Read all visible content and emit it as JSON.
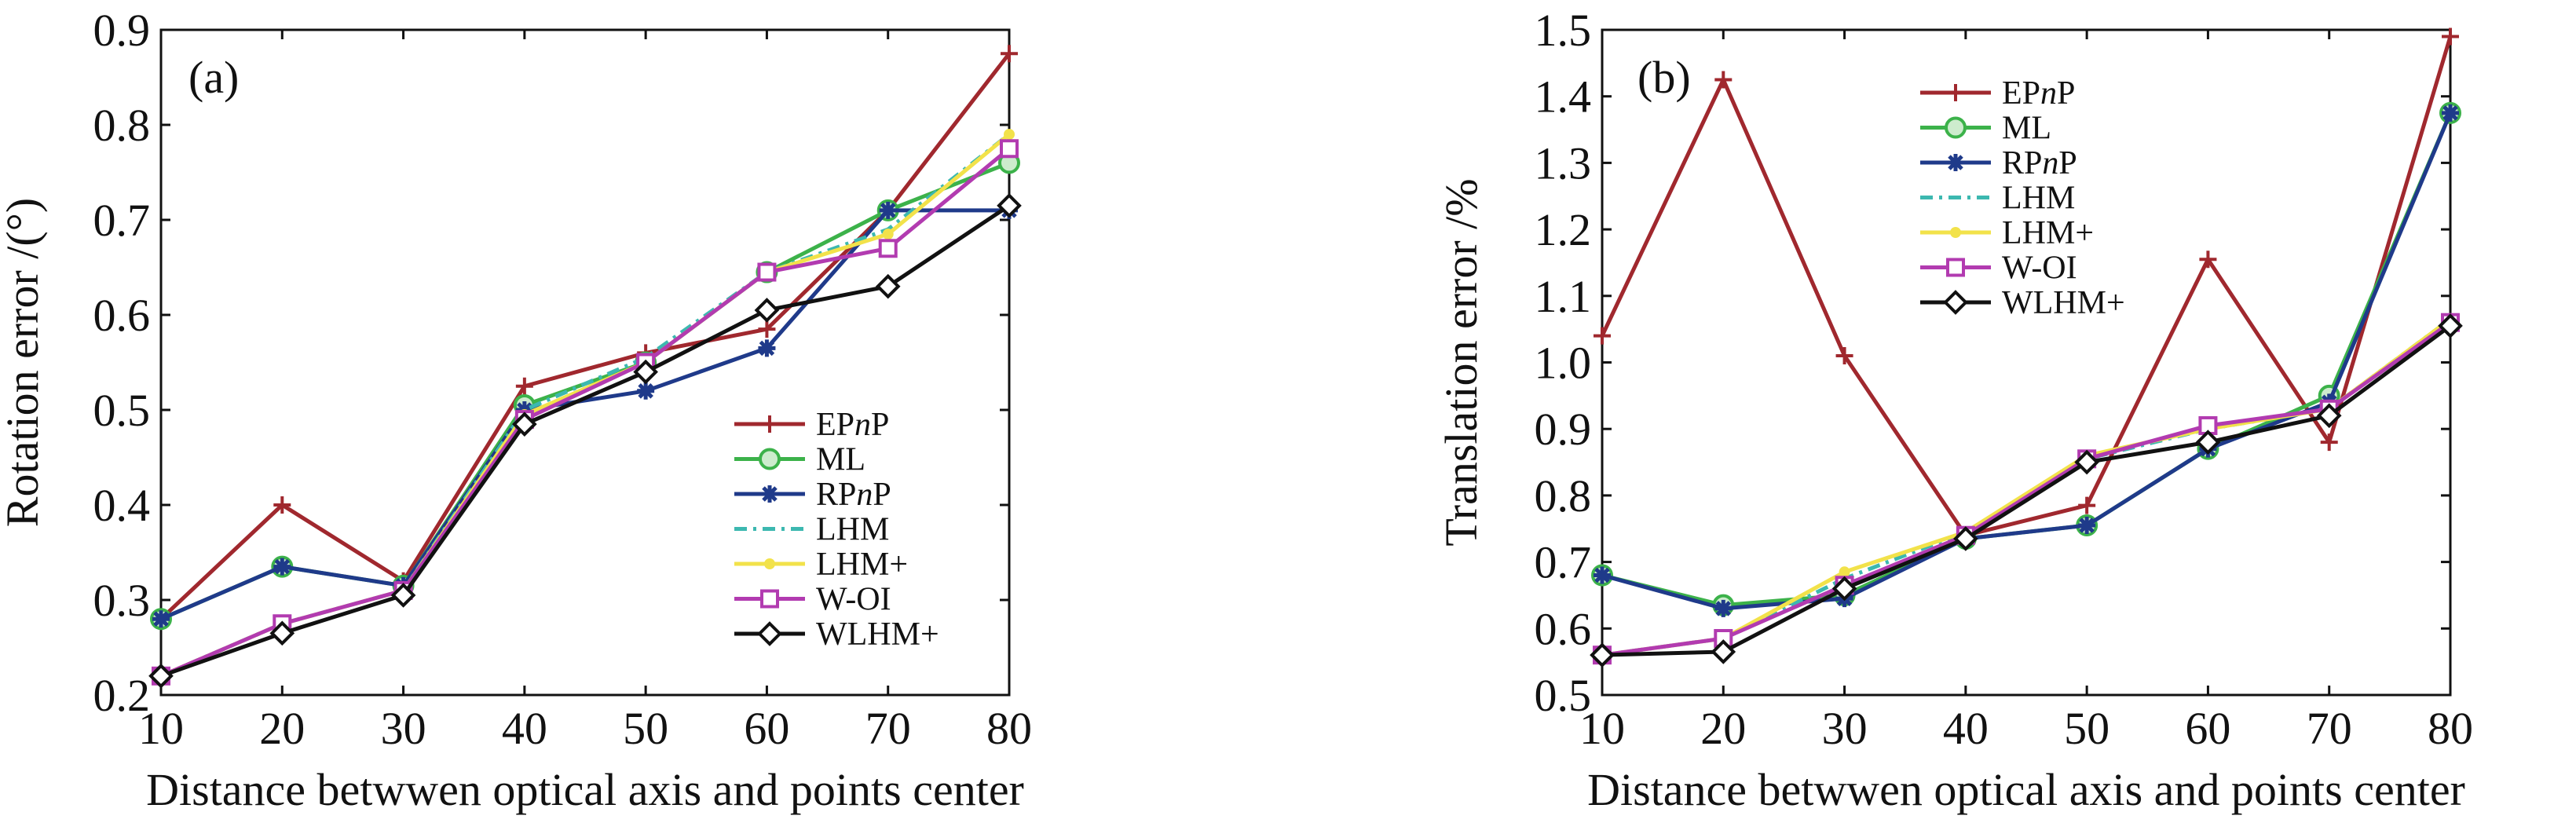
{
  "chart_data": [
    {
      "type": "line",
      "panel_label": "(a)",
      "xlabel": "Distance betwwen optical axis and points center",
      "ylabel": "Rotation error /(°)",
      "xlim": [
        10,
        80
      ],
      "ylim": [
        0.2,
        0.9
      ],
      "x": [
        10,
        20,
        30,
        40,
        50,
        60,
        70,
        80
      ],
      "xticks": [
        "10",
        "20",
        "30",
        "40",
        "50",
        "60",
        "70",
        "80"
      ],
      "yticks": [
        "0.2",
        "0.3",
        "0.4",
        "0.5",
        "0.6",
        "0.7",
        "0.8",
        "0.9"
      ],
      "legend_position": "lower-right",
      "series": [
        {
          "name": "EPnP",
          "legend": [
            "EP",
            "n",
            "P"
          ],
          "color": "#a0282e",
          "marker": "plus",
          "dash": "",
          "values": [
            0.28,
            0.4,
            0.32,
            0.525,
            0.56,
            0.585,
            0.71,
            0.875
          ]
        },
        {
          "name": "ML",
          "legend": [
            "ML"
          ],
          "color": "#3cb24a",
          "marker": "circle",
          "dash": "",
          "values": [
            0.28,
            0.335,
            0.315,
            0.505,
            0.55,
            0.645,
            0.71,
            0.76
          ]
        },
        {
          "name": "RPnP",
          "legend": [
            "RP",
            "n",
            "P"
          ],
          "color": "#1f3a8a",
          "marker": "star",
          "dash": "",
          "values": [
            0.28,
            0.335,
            0.315,
            0.5,
            0.52,
            0.565,
            0.71,
            0.71
          ]
        },
        {
          "name": "LHM",
          "legend": [
            "LHM"
          ],
          "color": "#3cb8b0",
          "marker": "none",
          "dash": "16 8 4 8",
          "values": [
            0.22,
            0.275,
            0.31,
            0.5,
            0.555,
            0.645,
            0.69,
            0.79
          ]
        },
        {
          "name": "LHM+",
          "legend": [
            "LHM+"
          ],
          "color": "#f2e24a",
          "marker": "dot",
          "dash": "",
          "values": [
            0.22,
            0.275,
            0.31,
            0.495,
            0.55,
            0.645,
            0.685,
            0.79
          ]
        },
        {
          "name": "W-OI",
          "legend": [
            "W-OI"
          ],
          "color": "#b23bb0",
          "marker": "square",
          "dash": "",
          "values": [
            0.22,
            0.275,
            0.31,
            0.49,
            0.55,
            0.645,
            0.67,
            0.775
          ]
        },
        {
          "name": "WLHM+",
          "legend": [
            "WLHM+"
          ],
          "color": "#111111",
          "marker": "diamond",
          "dash": "",
          "values": [
            0.22,
            0.265,
            0.305,
            0.485,
            0.54,
            0.605,
            0.63,
            0.715
          ]
        }
      ]
    },
    {
      "type": "line",
      "panel_label": "(b)",
      "xlabel": "Distance betwwen optical axis and points center",
      "ylabel": "Translation error /%",
      "xlim": [
        10,
        80
      ],
      "ylim": [
        0.5,
        1.5
      ],
      "x": [
        10,
        20,
        30,
        40,
        50,
        60,
        70,
        80
      ],
      "xticks": [
        "10",
        "20",
        "30",
        "40",
        "50",
        "60",
        "70",
        "80"
      ],
      "yticks": [
        "0.5",
        "0.6",
        "0.7",
        "0.8",
        "0.9",
        "1.0",
        "1.1",
        "1.2",
        "1.3",
        "1.4",
        "1.5"
      ],
      "legend_position": "top-center",
      "series": [
        {
          "name": "EPnP",
          "legend": [
            "EP",
            "n",
            "P"
          ],
          "color": "#a0282e",
          "marker": "plus",
          "dash": "",
          "values": [
            1.04,
            1.425,
            1.01,
            0.74,
            0.785,
            1.155,
            0.88,
            1.49
          ]
        },
        {
          "name": "ML",
          "legend": [
            "ML"
          ],
          "color": "#3cb24a",
          "marker": "circle",
          "dash": "",
          "values": [
            0.68,
            0.635,
            0.65,
            0.735,
            0.755,
            0.87,
            0.95,
            1.375
          ]
        },
        {
          "name": "RPnP",
          "legend": [
            "RP",
            "n",
            "P"
          ],
          "color": "#1f3a8a",
          "marker": "star",
          "dash": "",
          "values": [
            0.68,
            0.63,
            0.645,
            0.735,
            0.755,
            0.87,
            0.94,
            1.375
          ]
        },
        {
          "name": "LHM",
          "legend": [
            "LHM"
          ],
          "color": "#3cb8b0",
          "marker": "none",
          "dash": "16 8 4 8",
          "values": [
            0.56,
            0.585,
            0.675,
            0.745,
            0.855,
            0.9,
            0.93,
            1.065
          ]
        },
        {
          "name": "LHM+",
          "legend": [
            "LHM+"
          ],
          "color": "#f2e24a",
          "marker": "dot",
          "dash": "",
          "values": [
            0.56,
            0.585,
            0.685,
            0.745,
            0.86,
            0.9,
            0.93,
            1.065
          ]
        },
        {
          "name": "W-OI",
          "legend": [
            "W-OI"
          ],
          "color": "#b23bb0",
          "marker": "square",
          "dash": "",
          "values": [
            0.56,
            0.585,
            0.665,
            0.74,
            0.855,
            0.905,
            0.93,
            1.06
          ]
        },
        {
          "name": "WLHM+",
          "legend": [
            "WLHM+"
          ],
          "color": "#111111",
          "marker": "diamond",
          "dash": "",
          "values": [
            0.56,
            0.565,
            0.66,
            0.735,
            0.85,
            0.88,
            0.92,
            1.055
          ]
        }
      ]
    }
  ]
}
